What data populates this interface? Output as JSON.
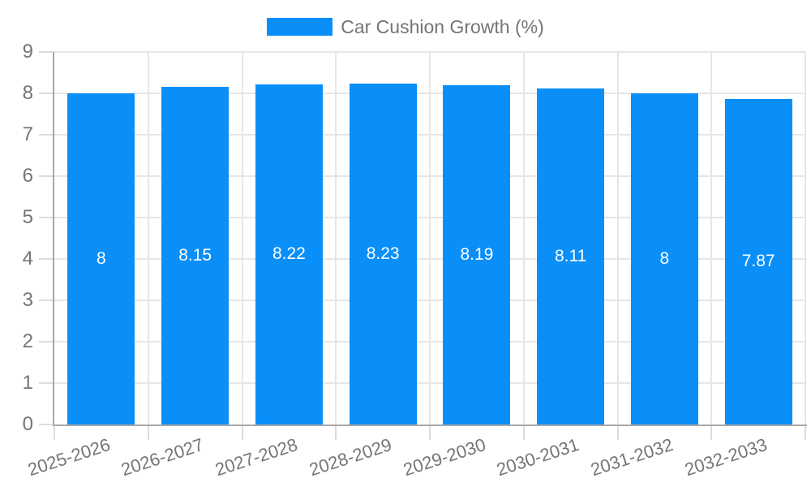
{
  "chart_data": {
    "type": "bar",
    "title": "Car Cushion Growth (%)",
    "categories": [
      "2025-2026",
      "2026-2027",
      "2027-2028",
      "2028-2029",
      "2029-2030",
      "2030-2031",
      "2031-2032",
      "2032-2033"
    ],
    "values": [
      8,
      8.15,
      8.22,
      8.23,
      8.19,
      8.11,
      8,
      7.87
    ],
    "bar_labels": [
      "8",
      "8.15",
      "8.22",
      "8.23",
      "8.19",
      "8.11",
      "8",
      "7.87"
    ],
    "ylim": [
      0,
      9
    ],
    "yticks": [
      0,
      1,
      2,
      3,
      4,
      5,
      6,
      7,
      8,
      9
    ],
    "grid": true,
    "legend_position": "top",
    "colors": {
      "bar": "#0a8ff9",
      "grid": "#e6e6e6",
      "axis": "#a8a8a8",
      "tick": "#dcdcdc",
      "axis_label": "#757575",
      "value_label": "#ffffff",
      "legend_text": "#757575",
      "background": "#ffffff"
    }
  }
}
